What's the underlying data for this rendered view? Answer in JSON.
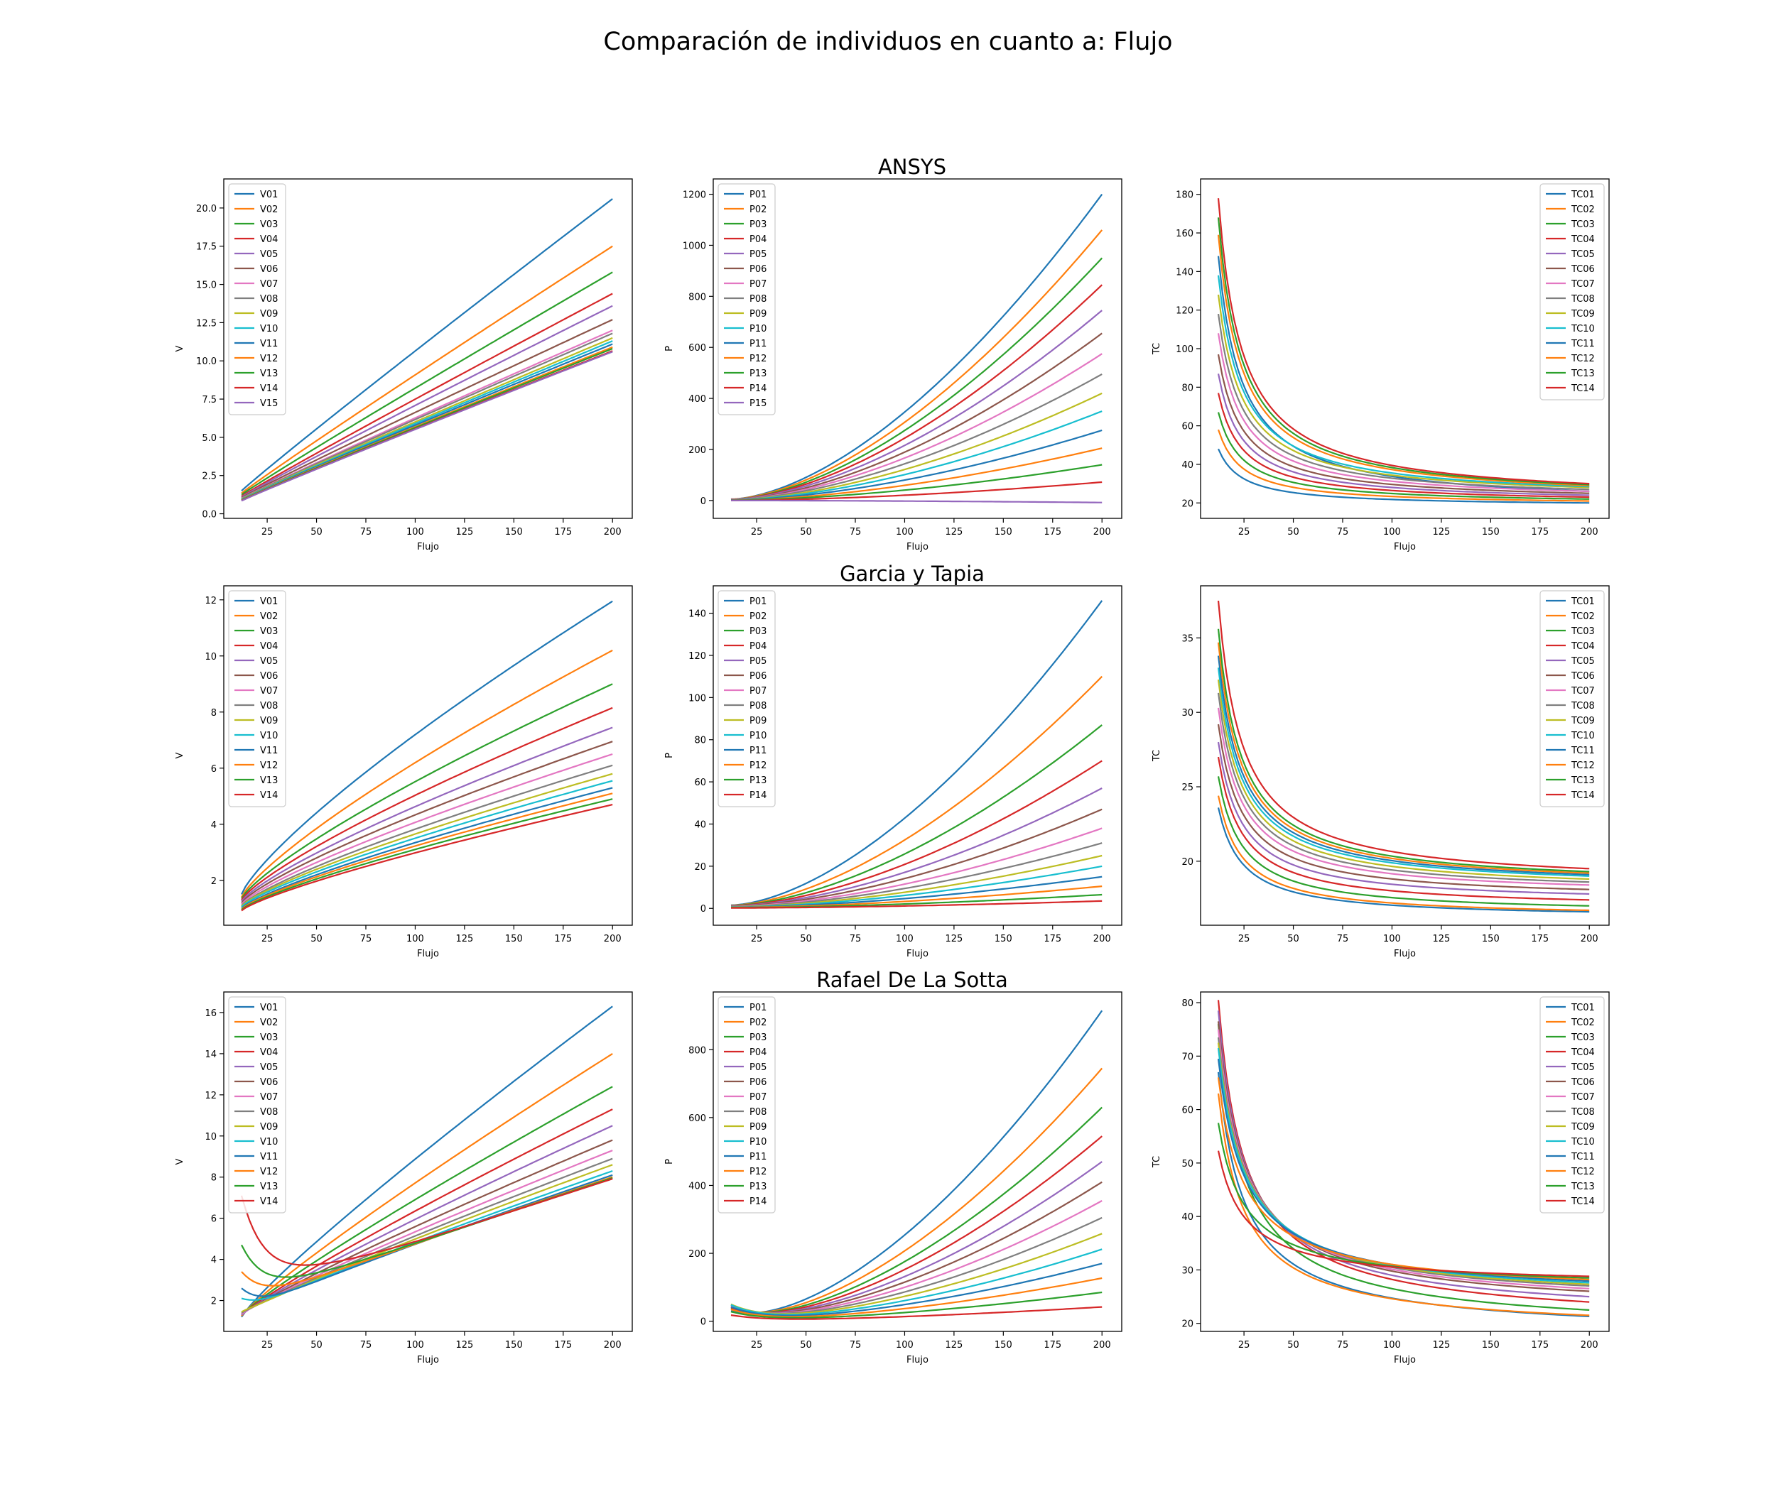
{
  "figure": {
    "title": "Comparación de individuos en cuanto a: Flujo",
    "row_titles": [
      "ANSYS",
      "Garcia y Tapia",
      "Rafael De La Sotta"
    ]
  },
  "colors": [
    "#1f77b4",
    "#ff7f0e",
    "#2ca02c",
    "#d62728",
    "#9467bd",
    "#8c564b",
    "#e377c2",
    "#7f7f7f",
    "#bcbd22",
    "#17becf"
  ],
  "chart_data": [
    {
      "id": "ansys-v",
      "type": "line",
      "model": "ansys",
      "var": "v",
      "row": 0,
      "col": 0,
      "xlabel": "Flujo",
      "ylabel": "V",
      "xlim": [
        3,
        210
      ],
      "ylim": [
        -0.3,
        21.9
      ],
      "xticks": [
        "25",
        "50",
        "75",
        "100",
        "125",
        "150",
        "175",
        "200"
      ],
      "yticks": [
        "0.0",
        "2.5",
        "5.0",
        "7.5",
        "10.0",
        "12.5",
        "15.0",
        "17.5",
        "20.0"
      ],
      "legend": "upper-left",
      "x_range": [
        12,
        200
      ],
      "series": [
        {
          "name": "V01",
          "start": 1.5,
          "end": 20.6
        },
        {
          "name": "V02",
          "start": 1.35,
          "end": 17.5
        },
        {
          "name": "V03",
          "start": 1.25,
          "end": 15.8
        },
        {
          "name": "V04",
          "start": 1.15,
          "end": 14.4
        },
        {
          "name": "V05",
          "start": 1.1,
          "end": 13.6
        },
        {
          "name": "V06",
          "start": 1.05,
          "end": 12.7
        },
        {
          "name": "V07",
          "start": 1.0,
          "end": 12.0
        },
        {
          "name": "V08",
          "start": 0.98,
          "end": 11.8
        },
        {
          "name": "V09",
          "start": 0.96,
          "end": 11.5
        },
        {
          "name": "V10",
          "start": 0.94,
          "end": 11.3
        },
        {
          "name": "V11",
          "start": 0.92,
          "end": 11.1
        },
        {
          "name": "V12",
          "start": 0.9,
          "end": 10.9
        },
        {
          "name": "V13",
          "start": 0.88,
          "end": 10.8
        },
        {
          "name": "V14",
          "start": 0.86,
          "end": 10.65
        },
        {
          "name": "V15",
          "start": 0.85,
          "end": 10.6
        }
      ]
    },
    {
      "id": "ansys-p",
      "type": "line",
      "model": "ansys",
      "var": "p",
      "row": 0,
      "col": 1,
      "xlabel": "Flujo",
      "ylabel": "P",
      "xlim": [
        3,
        210
      ],
      "ylim": [
        -70,
        1260
      ],
      "xticks": [
        "25",
        "50",
        "75",
        "100",
        "125",
        "150",
        "175",
        "200"
      ],
      "yticks": [
        "0",
        "200",
        "400",
        "600",
        "800",
        "1000",
        "1200"
      ],
      "legend": "upper-left",
      "x_range": [
        12,
        200
      ],
      "series": [
        {
          "name": "P01",
          "start": 5,
          "end": 1200
        },
        {
          "name": "P02",
          "start": 5,
          "end": 1060
        },
        {
          "name": "P03",
          "start": 4,
          "end": 950
        },
        {
          "name": "P04",
          "start": 4,
          "end": 845
        },
        {
          "name": "P05",
          "start": 4,
          "end": 745
        },
        {
          "name": "P06",
          "start": 3,
          "end": 655
        },
        {
          "name": "P07",
          "start": 3,
          "end": 575
        },
        {
          "name": "P08",
          "start": 3,
          "end": 495
        },
        {
          "name": "P09",
          "start": 2,
          "end": 420
        },
        {
          "name": "P10",
          "start": 2,
          "end": 350
        },
        {
          "name": "P11",
          "start": 2,
          "end": 275
        },
        {
          "name": "P12",
          "start": 1,
          "end": 205
        },
        {
          "name": "P13",
          "start": 1,
          "end": 140
        },
        {
          "name": "P14",
          "start": 0,
          "end": 72
        },
        {
          "name": "P15",
          "start": 0,
          "end": -8
        }
      ]
    },
    {
      "id": "ansys-tc",
      "type": "line",
      "model": "ansys",
      "var": "tc",
      "row": 0,
      "col": 2,
      "xlabel": "Flujo",
      "ylabel": "TC",
      "xlim": [
        3,
        210
      ],
      "ylim": [
        12,
        188
      ],
      "xticks": [
        "25",
        "50",
        "75",
        "100",
        "125",
        "150",
        "175",
        "200"
      ],
      "yticks": [
        "20",
        "40",
        "60",
        "80",
        "100",
        "120",
        "140",
        "160",
        "180"
      ],
      "legend": "upper-right",
      "x_range": [
        12,
        200
      ],
      "series": [
        {
          "name": "TC01",
          "start": 148,
          "end": 26
        },
        {
          "name": "TC02",
          "start": 58,
          "end": 21
        },
        {
          "name": "TC03",
          "start": 67,
          "end": 22
        },
        {
          "name": "TC04",
          "start": 77,
          "end": 23
        },
        {
          "name": "TC05",
          "start": 87,
          "end": 24
        },
        {
          "name": "TC06",
          "start": 97,
          "end": 25
        },
        {
          "name": "TC07",
          "start": 108,
          "end": 26
        },
        {
          "name": "TC08",
          "start": 118,
          "end": 27
        },
        {
          "name": "TC09",
          "start": 128,
          "end": 28
        },
        {
          "name": "TC10",
          "start": 138,
          "end": 28.5
        },
        {
          "name": "TC11",
          "start": 48,
          "end": 20
        },
        {
          "name": "TC12",
          "start": 159,
          "end": 29
        },
        {
          "name": "TC13",
          "start": 168,
          "end": 29.5
        },
        {
          "name": "TC14",
          "start": 178,
          "end": 30
        }
      ]
    },
    {
      "id": "gt-v",
      "type": "line",
      "model": "gt",
      "var": "v",
      "row": 1,
      "col": 0,
      "xlabel": "Flujo",
      "ylabel": "V",
      "xlim": [
        3,
        210
      ],
      "ylim": [
        0.4,
        12.5
      ],
      "xticks": [
        "25",
        "50",
        "75",
        "100",
        "125",
        "150",
        "175",
        "200"
      ],
      "yticks": [
        "2",
        "4",
        "6",
        "8",
        "10",
        "12"
      ],
      "legend": "upper-left",
      "x_range": [
        12,
        200
      ],
      "series": [
        {
          "name": "V01",
          "start": 1.5,
          "end": 11.95
        },
        {
          "name": "V02",
          "start": 1.4,
          "end": 10.2
        },
        {
          "name": "V03",
          "start": 1.35,
          "end": 9.0
        },
        {
          "name": "V04",
          "start": 1.3,
          "end": 8.15
        },
        {
          "name": "V05",
          "start": 1.25,
          "end": 7.45
        },
        {
          "name": "V06",
          "start": 1.2,
          "end": 6.95
        },
        {
          "name": "V07",
          "start": 1.15,
          "end": 6.5
        },
        {
          "name": "V08",
          "start": 1.1,
          "end": 6.1
        },
        {
          "name": "V09",
          "start": 1.08,
          "end": 5.8
        },
        {
          "name": "V10",
          "start": 1.05,
          "end": 5.55
        },
        {
          "name": "V11",
          "start": 1.0,
          "end": 5.3
        },
        {
          "name": "V12",
          "start": 0.98,
          "end": 5.1
        },
        {
          "name": "V13",
          "start": 0.95,
          "end": 4.9
        },
        {
          "name": "V14",
          "start": 0.92,
          "end": 4.7
        }
      ]
    },
    {
      "id": "gt-p",
      "type": "line",
      "model": "gt",
      "var": "p",
      "row": 1,
      "col": 1,
      "xlabel": "Flujo",
      "ylabel": "P",
      "xlim": [
        3,
        210
      ],
      "ylim": [
        -8,
        153
      ],
      "xticks": [
        "25",
        "50",
        "75",
        "100",
        "125",
        "150",
        "175",
        "200"
      ],
      "yticks": [
        "0",
        "20",
        "40",
        "60",
        "80",
        "100",
        "120",
        "140"
      ],
      "legend": "upper-left",
      "x_range": [
        12,
        200
      ],
      "series": [
        {
          "name": "P01",
          "start": 1.5,
          "end": 146
        },
        {
          "name": "P02",
          "start": 1.4,
          "end": 110
        },
        {
          "name": "P03",
          "start": 1.3,
          "end": 87
        },
        {
          "name": "P04",
          "start": 1.2,
          "end": 70
        },
        {
          "name": "P05",
          "start": 1.1,
          "end": 57
        },
        {
          "name": "P06",
          "start": 1.0,
          "end": 47
        },
        {
          "name": "P07",
          "start": 0.9,
          "end": 38
        },
        {
          "name": "P08",
          "start": 0.8,
          "end": 31
        },
        {
          "name": "P09",
          "start": 0.7,
          "end": 25
        },
        {
          "name": "P10",
          "start": 0.6,
          "end": 20
        },
        {
          "name": "P11",
          "start": 0.5,
          "end": 15
        },
        {
          "name": "P12",
          "start": 0.4,
          "end": 10.5
        },
        {
          "name": "P13",
          "start": 0.3,
          "end": 6.5
        },
        {
          "name": "P14",
          "start": 0.2,
          "end": 3.5
        }
      ]
    },
    {
      "id": "gt-tc",
      "type": "line",
      "model": "gt",
      "var": "tc",
      "row": 1,
      "col": 2,
      "xlabel": "Flujo",
      "ylabel": "TC",
      "xlim": [
        3,
        210
      ],
      "ylim": [
        15.7,
        38.5
      ],
      "xticks": [
        "25",
        "50",
        "75",
        "100",
        "125",
        "150",
        "175",
        "200"
      ],
      "yticks": [
        "20",
        "25",
        "30",
        "35"
      ],
      "legend": "upper-right",
      "x_range": [
        12,
        200
      ],
      "series": [
        {
          "name": "TC01",
          "start": 23.6,
          "end": 16.6
        },
        {
          "name": "TC02",
          "start": 24.4,
          "end": 16.7
        },
        {
          "name": "TC03",
          "start": 25.7,
          "end": 17.0
        },
        {
          "name": "TC04",
          "start": 27.0,
          "end": 17.4
        },
        {
          "name": "TC05",
          "start": 28.0,
          "end": 17.8
        },
        {
          "name": "TC06",
          "start": 29.2,
          "end": 18.1
        },
        {
          "name": "TC07",
          "start": 30.3,
          "end": 18.4
        },
        {
          "name": "TC08",
          "start": 31.3,
          "end": 18.6
        },
        {
          "name": "TC09",
          "start": 32.2,
          "end": 18.8
        },
        {
          "name": "TC10",
          "start": 33.0,
          "end": 19.0
        },
        {
          "name": "TC11",
          "start": 33.8,
          "end": 19.1
        },
        {
          "name": "TC12",
          "start": 34.7,
          "end": 19.2
        },
        {
          "name": "TC13",
          "start": 35.6,
          "end": 19.3
        },
        {
          "name": "TC14",
          "start": 37.5,
          "end": 19.5
        }
      ]
    },
    {
      "id": "rs-v",
      "type": "line",
      "model": "rs",
      "var": "v",
      "row": 2,
      "col": 0,
      "xlabel": "Flujo",
      "ylabel": "V",
      "xlim": [
        3,
        210
      ],
      "ylim": [
        0.5,
        17
      ],
      "xticks": [
        "25",
        "50",
        "75",
        "100",
        "125",
        "150",
        "175",
        "200"
      ],
      "yticks": [
        "2",
        "4",
        "6",
        "8",
        "10",
        "12",
        "14",
        "16"
      ],
      "legend": "upper-left",
      "x_range": [
        12,
        200
      ],
      "series": [
        {
          "name": "V01",
          "start": 1.2,
          "end": 16.3,
          "hump": 0
        },
        {
          "name": "V02",
          "start": 1.25,
          "end": 14.0,
          "hump": 0
        },
        {
          "name": "V03",
          "start": 1.3,
          "end": 12.4,
          "hump": 0
        },
        {
          "name": "V04",
          "start": 1.3,
          "end": 11.3,
          "hump": 0
        },
        {
          "name": "V05",
          "start": 1.3,
          "end": 10.5,
          "hump": 0
        },
        {
          "name": "V06",
          "start": 1.35,
          "end": 9.8,
          "hump": 0
        },
        {
          "name": "V07",
          "start": 1.35,
          "end": 9.3,
          "hump": 0
        },
        {
          "name": "V08",
          "start": 1.4,
          "end": 8.9,
          "hump": 0
        },
        {
          "name": "V09",
          "start": 1.45,
          "end": 8.6,
          "hump": 0
        },
        {
          "name": "V10",
          "start": 2.1,
          "end": 8.3,
          "hump": 0
        },
        {
          "name": "V11",
          "start": 2.6,
          "end": 8.1,
          "hump": 0
        },
        {
          "name": "V12",
          "start": 3.4,
          "end": 8.0,
          "hump": 1.2
        },
        {
          "name": "V13",
          "start": 4.7,
          "end": 7.95,
          "hump": 2.2
        },
        {
          "name": "V14",
          "start": 7.1,
          "end": 7.9,
          "hump": 4.2
        }
      ]
    },
    {
      "id": "rs-p",
      "type": "line",
      "model": "rs",
      "var": "p",
      "row": 2,
      "col": 1,
      "xlabel": "Flujo",
      "ylabel": "P",
      "xlim": [
        3,
        210
      ],
      "ylim": [
        -30,
        970
      ],
      "xticks": [
        "25",
        "50",
        "75",
        "100",
        "125",
        "150",
        "175",
        "200"
      ],
      "yticks": [
        "0",
        "200",
        "400",
        "600",
        "800"
      ],
      "legend": "upper-left",
      "x_range": [
        12,
        200
      ],
      "series": [
        {
          "name": "P01",
          "start": 30,
          "end": 915
        },
        {
          "name": "P02",
          "start": 35,
          "end": 745
        },
        {
          "name": "P03",
          "start": 38,
          "end": 630
        },
        {
          "name": "P04",
          "start": 40,
          "end": 545
        },
        {
          "name": "P05",
          "start": 42,
          "end": 470
        },
        {
          "name": "P06",
          "start": 44,
          "end": 410
        },
        {
          "name": "P07",
          "start": 46,
          "end": 355
        },
        {
          "name": "P08",
          "start": 48,
          "end": 305
        },
        {
          "name": "P09",
          "start": 50,
          "end": 258
        },
        {
          "name": "P10",
          "start": 48,
          "end": 212
        },
        {
          "name": "P11",
          "start": 42,
          "end": 170
        },
        {
          "name": "P12",
          "start": 35,
          "end": 127
        },
        {
          "name": "P13",
          "start": 28,
          "end": 85
        },
        {
          "name": "P14",
          "start": 18,
          "end": 42
        }
      ]
    },
    {
      "id": "rs-tc",
      "type": "line",
      "model": "rs",
      "var": "tc",
      "row": 2,
      "col": 2,
      "xlabel": "Flujo",
      "ylabel": "TC",
      "xlim": [
        3,
        210
      ],
      "ylim": [
        18.5,
        82
      ],
      "xticks": [
        "25",
        "50",
        "75",
        "100",
        "125",
        "150",
        "175",
        "200"
      ],
      "yticks": [
        "20",
        "30",
        "40",
        "50",
        "60",
        "70",
        "80"
      ],
      "legend": "upper-right",
      "x_range": [
        12,
        200
      ],
      "series": [
        {
          "name": "TC01",
          "start": 67,
          "end": 21.3
        },
        {
          "name": "TC02",
          "start": 63,
          "end": 21.5
        },
        {
          "name": "TC03",
          "start": 76,
          "end": 22.5
        },
        {
          "name": "TC04",
          "start": 80.5,
          "end": 24
        },
        {
          "name": "TC05",
          "start": 78.5,
          "end": 25
        },
        {
          "name": "TC06",
          "start": 76.5,
          "end": 26
        },
        {
          "name": "TC07",
          "start": 75,
          "end": 26.5
        },
        {
          "name": "TC08",
          "start": 73.5,
          "end": 27
        },
        {
          "name": "TC09",
          "start": 72.5,
          "end": 27.3
        },
        {
          "name": "TC10",
          "start": 71.5,
          "end": 27.6
        },
        {
          "name": "TC11",
          "start": 69.5,
          "end": 27.9
        },
        {
          "name": "TC12",
          "start": 66,
          "end": 28.2
        },
        {
          "name": "TC13",
          "start": 57.5,
          "end": 28.5
        },
        {
          "name": "TC14",
          "start": 52.3,
          "end": 28.8
        }
      ]
    }
  ]
}
